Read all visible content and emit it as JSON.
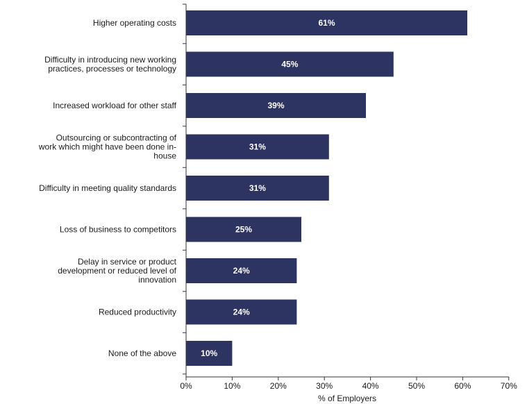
{
  "chart_data": {
    "type": "bar",
    "orientation": "horizontal",
    "categories": [
      [
        "Higher operating costs"
      ],
      [
        "Difficulty in introducing new working",
        "practices, processes or technology"
      ],
      [
        "Increased workload for other staff"
      ],
      [
        "Outsourcing or subcontracting of",
        "work which might have been done in-",
        "house"
      ],
      [
        "Difficulty in meeting quality standards"
      ],
      [
        "Loss of business to competitors"
      ],
      [
        "Delay in service or product",
        "development or reduced level of",
        "innovation"
      ],
      [
        "Reduced productivity"
      ],
      [
        "None of the above"
      ]
    ],
    "values": [
      61,
      45,
      39,
      31,
      31,
      25,
      24,
      24,
      10
    ],
    "data_labels": [
      "61%",
      "45%",
      "39%",
      "31%",
      "31%",
      "25%",
      "24%",
      "24%",
      "10%"
    ],
    "xlim": [
      0,
      70
    ],
    "xticks": [
      0,
      10,
      20,
      30,
      40,
      50,
      60,
      70
    ],
    "xtick_labels": [
      "0%",
      "10%",
      "20%",
      "30%",
      "40%",
      "50%",
      "60%",
      "70%"
    ],
    "xlabel": "% of Employers",
    "ylabel": "",
    "title": "",
    "grid": false,
    "legend": "none",
    "bar_color": "#2e3461",
    "axis_color": "#333333"
  }
}
